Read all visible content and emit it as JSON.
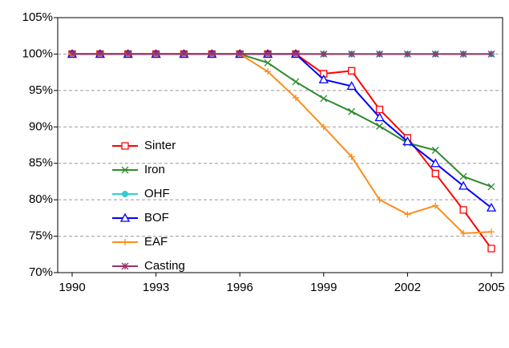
{
  "chart_data": {
    "type": "line",
    "x": [
      1990,
      1991,
      1992,
      1993,
      1994,
      1995,
      1996,
      1997,
      1998,
      1999,
      2000,
      2001,
      2002,
      2003,
      2004,
      2005
    ],
    "xlim": [
      1990,
      2005
    ],
    "xticks": [
      1990,
      1993,
      1996,
      1999,
      2002,
      2005
    ],
    "ylim": [
      70,
      105
    ],
    "yticks": [
      {
        "value": 70,
        "label": "70%"
      },
      {
        "value": 75,
        "label": "75%"
      },
      {
        "value": 80,
        "label": "80%"
      },
      {
        "value": 85,
        "label": "85%"
      },
      {
        "value": 90,
        "label": "90%"
      },
      {
        "value": 95,
        "label": "95%"
      },
      {
        "value": 100,
        "label": "100%"
      },
      {
        "value": 105,
        "label": "105%"
      }
    ],
    "grid": true,
    "series": [
      {
        "name": "Sinter",
        "color": "#ff0000",
        "marker": "square",
        "values": [
          100,
          100,
          100,
          100,
          100,
          100,
          100,
          100,
          100,
          97.3,
          97.7,
          92.4,
          88.5,
          83.6,
          78.6,
          73.3
        ]
      },
      {
        "name": "Iron",
        "color": "#2e8b2e",
        "marker": "x",
        "values": [
          100,
          100,
          100,
          100,
          100,
          100,
          100,
          98.8,
          96.2,
          93.9,
          92.1,
          90.1,
          87.8,
          86.8,
          83.2,
          81.8
        ]
      },
      {
        "name": "OHF",
        "color": "#33cccc",
        "marker": "circle",
        "values": [
          100,
          100,
          100,
          100,
          100,
          100,
          100,
          100,
          100,
          100,
          100,
          100,
          100,
          100,
          100,
          100
        ]
      },
      {
        "name": "BOF",
        "color": "#0000ff",
        "marker": "triangle",
        "values": [
          100,
          100,
          100,
          100,
          100,
          100,
          100,
          100,
          100,
          96.5,
          95.6,
          91.3,
          88.0,
          85.0,
          81.9,
          78.9
        ]
      },
      {
        "name": "EAF",
        "color": "#ff8c1a",
        "marker": "plus",
        "values": [
          100,
          100,
          100,
          100,
          100,
          100,
          100,
          97.6,
          94.0,
          90.0,
          85.9,
          80.0,
          78.0,
          79.2,
          75.4,
          75.6
        ]
      },
      {
        "name": "Casting",
        "color": "#993366",
        "marker": "star",
        "values": [
          100,
          100,
          100,
          100,
          100,
          100,
          100,
          100,
          100,
          100,
          100,
          100,
          100,
          100,
          100,
          100
        ]
      }
    ]
  }
}
